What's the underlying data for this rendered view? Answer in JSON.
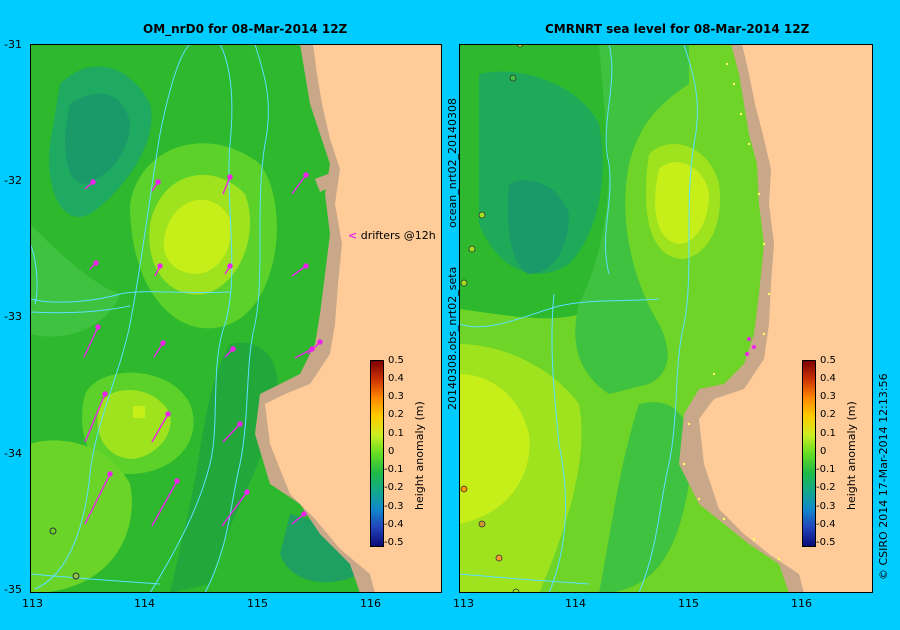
{
  "left_panel": {
    "title": "OM_nrD0 for 08-Mar-2014 12Z"
  },
  "right_panel": {
    "title": "CMRNRT sea level  for 08-Mar-2014 12Z"
  },
  "lat_ticks": [
    "-31",
    "-32",
    "-33",
    "-34",
    "-35"
  ],
  "lon_ticks": [
    "113",
    "114",
    "115",
    "116"
  ],
  "drifters_label": "drifters @12h",
  "colorbar": {
    "label": "height anomaly (m)",
    "ticks": [
      "0.5",
      "0.4",
      "0.3",
      "0.2",
      "0.1",
      "0",
      "-0.1",
      "-0.2",
      "-0.3",
      "-0.4",
      "-0.5"
    ]
  },
  "side_text_1": "ocean_nrt02_20140308",
  "side_text_2": "20140308.obs_nrt02_seta",
  "credit": "© CSIRO 2014   17-Mar-2014 12:13:56",
  "colors": {
    "background": "#00ccff",
    "land": "#ffcc99",
    "shelf": "#c8a888",
    "drifter": "#ee22ee"
  }
}
